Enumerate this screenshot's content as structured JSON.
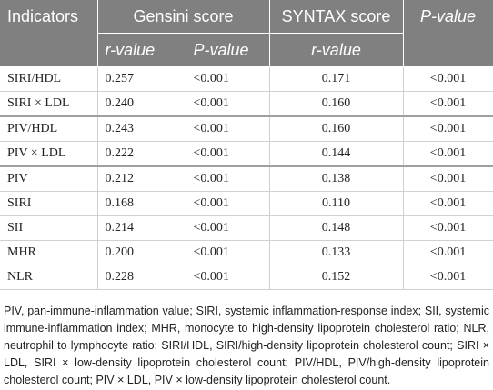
{
  "table": {
    "header": {
      "indicators": "Indicators",
      "gensini": "Gensini score",
      "syntax": "SYNTAX score",
      "pvalue": "P-value",
      "sub": [
        "r-value",
        "P-value",
        "r-value"
      ]
    },
    "rows": [
      [
        "SIRI/HDL",
        "0.257",
        "<0.001",
        "0.171",
        "<0.001"
      ],
      [
        "SIRI × LDL",
        "0.240",
        "<0.001",
        "0.160",
        "<0.001"
      ],
      [
        "PIV/HDL",
        "0.243",
        "<0.001",
        "0.160",
        "<0.001"
      ],
      [
        "PIV × LDL",
        "0.222",
        "<0.001",
        "0.144",
        "<0.001"
      ],
      [
        "PIV",
        "0.212",
        "<0.001",
        "0.138",
        "<0.001"
      ],
      [
        "SIRI",
        "0.168",
        "<0.001",
        "0.110",
        "<0.001"
      ],
      [
        "SII",
        "0.214",
        "<0.001",
        "0.148",
        "<0.001"
      ],
      [
        "MHR",
        "0.200",
        "<0.001",
        "0.133",
        "<0.001"
      ],
      [
        "NLR",
        "0.228",
        "<0.001",
        "0.152",
        "<0.001"
      ]
    ]
  },
  "footnote": "PIV, pan-immune-inflammation value; SIRI, systemic inflammation-response index; SII, systemic immune-inflammation index; MHR, monocyte to high-density lipoprotein cholesterol ratio; NLR, neutrophil to lymphocyte ratio; SIRI/HDL, SIRI/high-density lipoprotein cholesterol count; SIRI × LDL, SIRI × low-density lipoprotein cholesterol count; PIV/HDL, PIV/high-density lipoprotein cholesterol count; PIV × LDL, PIV × low-density lipoprotein cholesterol count."
}
